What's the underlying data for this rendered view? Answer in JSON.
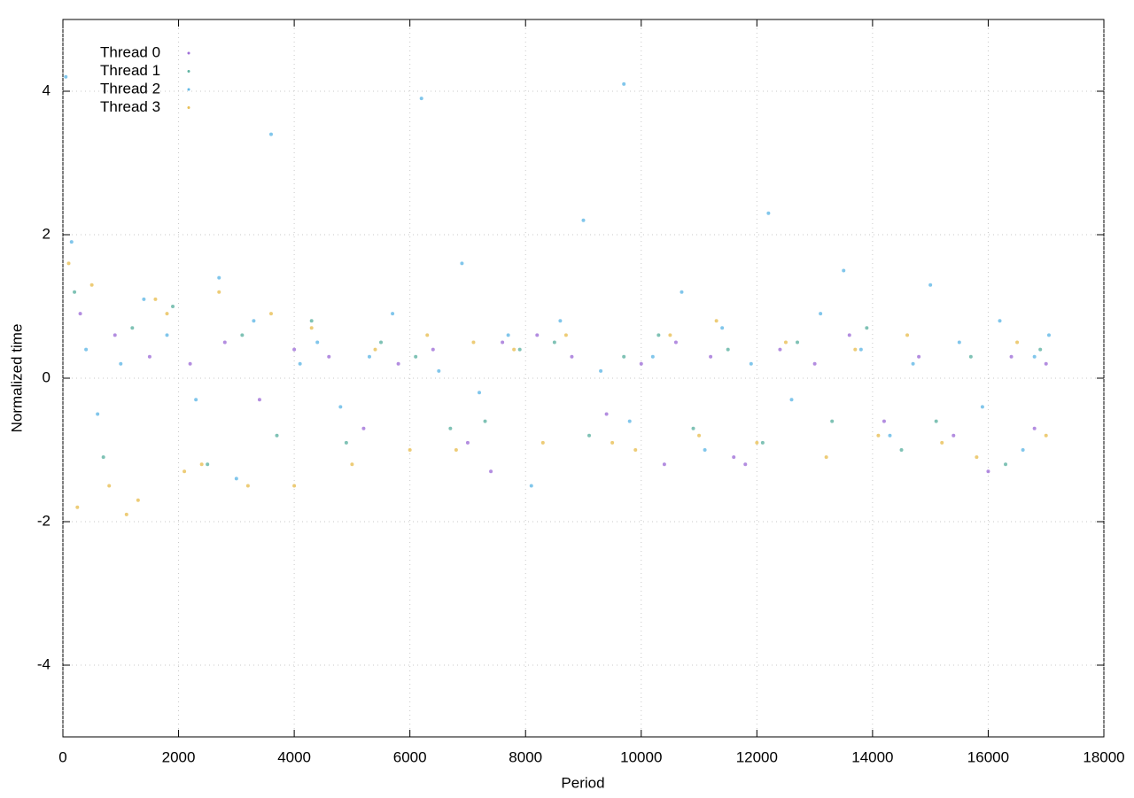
{
  "chart_data": {
    "type": "scatter",
    "x_label": "Period",
    "y_label": "Normalized time",
    "xlim": [
      0,
      18000
    ],
    "ylim": [
      -5,
      5
    ],
    "xticks": [
      0,
      2000,
      4000,
      6000,
      8000,
      10000,
      12000,
      14000,
      16000,
      18000
    ],
    "yticks": [
      -4,
      -2,
      0,
      2,
      4
    ],
    "grid": true,
    "legend": "top-left",
    "series": [
      {
        "name": "Thread 0",
        "color": "#a070d8",
        "x": [
          300,
          900,
          1500,
          2200,
          2800,
          3400,
          4000,
          4600,
          5200,
          5800,
          6400,
          7000,
          7400,
          7600,
          8200,
          8800,
          9400,
          10000,
          10400,
          10600,
          11200,
          11600,
          11800,
          12400,
          13000,
          13600,
          14200,
          14800,
          15400,
          16000,
          16400,
          16800,
          17000
        ],
        "values": [
          0.9,
          0.6,
          0.3,
          0.2,
          0.5,
          -0.3,
          0.4,
          0.3,
          -0.7,
          0.2,
          0.4,
          -0.9,
          -1.3,
          0.5,
          0.6,
          0.3,
          -0.5,
          0.2,
          -1.2,
          0.5,
          0.3,
          -1.1,
          -1.2,
          0.4,
          0.2,
          0.6,
          -0.6,
          0.3,
          -0.8,
          -1.3,
          0.3,
          -0.7,
          0.2
        ]
      },
      {
        "name": "Thread 1",
        "color": "#5fb3a2",
        "x": [
          200,
          700,
          1200,
          1900,
          2500,
          3100,
          3700,
          4300,
          4900,
          5500,
          6100,
          6700,
          7300,
          7900,
          8500,
          9100,
          9700,
          10300,
          10900,
          11500,
          12100,
          12700,
          13300,
          13900,
          14500,
          15100,
          15700,
          16300,
          16900
        ],
        "values": [
          1.2,
          -1.1,
          0.7,
          1.0,
          -1.2,
          0.6,
          -0.8,
          0.8,
          -0.9,
          0.5,
          0.3,
          -0.7,
          -0.6,
          0.4,
          0.5,
          -0.8,
          0.3,
          0.6,
          -0.7,
          0.4,
          -0.9,
          0.5,
          -0.6,
          0.7,
          -1.0,
          -0.6,
          0.3,
          -1.2,
          0.4
        ]
      },
      {
        "name": "Thread 2",
        "color": "#62b8e6",
        "x": [
          50,
          150,
          400,
          600,
          1000,
          1400,
          1800,
          2300,
          2700,
          3000,
          3300,
          3600,
          4100,
          4400,
          4800,
          5300,
          5700,
          6200,
          6500,
          6900,
          7200,
          7700,
          8100,
          8600,
          9000,
          9300,
          9700,
          9800,
          10200,
          10700,
          11100,
          11400,
          11900,
          12200,
          12600,
          13100,
          13500,
          13800,
          14300,
          14700,
          15000,
          15500,
          15900,
          16200,
          16600,
          16800,
          17050
        ],
        "values": [
          4.2,
          1.9,
          0.4,
          -0.5,
          0.2,
          1.1,
          0.6,
          -0.3,
          1.4,
          -1.4,
          0.8,
          3.4,
          0.2,
          0.5,
          -0.4,
          0.3,
          0.9,
          3.9,
          0.1,
          1.6,
          -0.2,
          0.6,
          -1.5,
          0.8,
          2.2,
          0.1,
          4.1,
          -0.6,
          0.3,
          1.2,
          -1.0,
          0.7,
          0.2,
          2.3,
          -0.3,
          0.9,
          1.5,
          0.4,
          -0.8,
          0.2,
          1.3,
          0.5,
          -0.4,
          0.8,
          -1.0,
          0.3,
          0.6
        ]
      },
      {
        "name": "Thread 3",
        "color": "#e8bf55",
        "x": [
          100,
          250,
          500,
          800,
          1100,
          1300,
          1600,
          1800,
          2100,
          2400,
          2700,
          3200,
          3600,
          4000,
          4300,
          5000,
          5400,
          6000,
          6300,
          6800,
          7100,
          7800,
          8300,
          8700,
          9500,
          9900,
          10500,
          11000,
          11300,
          12000,
          12500,
          13200,
          13700,
          14100,
          14600,
          15200,
          15800,
          16500,
          17000
        ],
        "values": [
          1.6,
          -1.8,
          1.3,
          -1.5,
          -1.9,
          -1.7,
          1.1,
          0.9,
          -1.3,
          -1.2,
          1.2,
          -1.5,
          0.9,
          -1.5,
          0.7,
          -1.2,
          0.4,
          -1.0,
          0.6,
          -1.0,
          0.5,
          0.4,
          -0.9,
          0.6,
          -0.9,
          -1.0,
          0.6,
          -0.8,
          0.8,
          -0.9,
          0.5,
          -1.1,
          0.4,
          -0.8,
          0.6,
          -0.9,
          -1.1,
          0.5,
          -0.8
        ]
      }
    ]
  }
}
